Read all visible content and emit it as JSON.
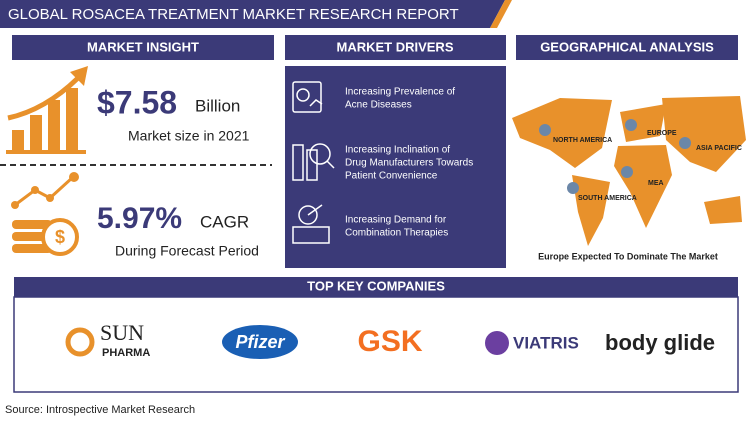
{
  "header": {
    "title": "GLOBAL  ROSACEA TREATMENT MARKET RESEARCH REPORT"
  },
  "market_insight": {
    "heading": "MARKET INSIGHT",
    "value": "$7.58",
    "unit": "Billion",
    "caption": "Market size in 2021",
    "cagr": "5.97%",
    "cagr_label": "CAGR",
    "cagr_caption": "During Forecast Period"
  },
  "market_drivers": {
    "heading": "MARKET DRIVERS",
    "items": [
      [
        "Increasing Prevalence of",
        "Acne Diseases"
      ],
      [
        "Increasing Inclination of",
        "Drug Manufacturers Towards",
        "Patient Convenience"
      ],
      [
        "Increasing Demand for",
        "Combination Therapies"
      ]
    ]
  },
  "geographical_analysis": {
    "heading": "GEOGRAPHICAL ANALYSIS",
    "regions": [
      "NORTH AMERICA",
      "EUROPE",
      "ASIA PACIFIC",
      "MEA",
      "SOUTH AMERICA"
    ],
    "caption": "Europe Expected To Dominate The Market"
  },
  "key_companies": {
    "heading": "TOP KEY COMPANIES",
    "companies": [
      [
        "SUN",
        "PHARMA"
      ],
      [
        "Pfizer"
      ],
      [
        "GSK"
      ],
      [
        "VIATRIS"
      ],
      [
        "body glide"
      ]
    ]
  },
  "source": "Source: Introspective Market Research"
}
